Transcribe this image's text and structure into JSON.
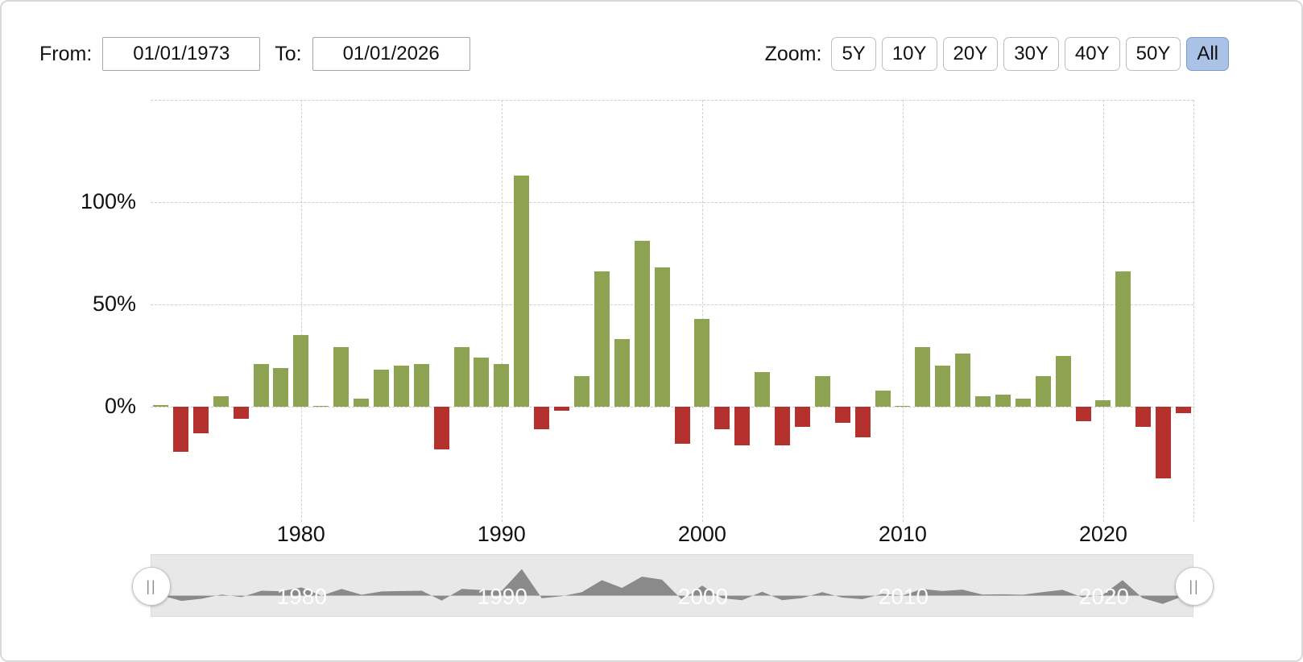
{
  "controls": {
    "from_label": "From:",
    "from_value": "01/01/1973",
    "to_label": "To:",
    "to_value": "01/01/2026",
    "zoom_label": "Zoom:",
    "zoom_buttons": [
      "5Y",
      "10Y",
      "20Y",
      "30Y",
      "40Y",
      "50Y",
      "All"
    ],
    "zoom_selected": "All"
  },
  "chart_data": {
    "type": "bar",
    "title": "",
    "xlabel": "",
    "ylabel": "",
    "x": [
      1973,
      1974,
      1975,
      1976,
      1977,
      1978,
      1979,
      1980,
      1981,
      1982,
      1983,
      1984,
      1985,
      1986,
      1987,
      1988,
      1989,
      1990,
      1991,
      1992,
      1993,
      1994,
      1995,
      1996,
      1997,
      1998,
      1999,
      2000,
      2001,
      2002,
      2003,
      2004,
      2005,
      2006,
      2007,
      2008,
      2009,
      2010,
      2011,
      2012,
      2013,
      2014,
      2015,
      2016,
      2017,
      2018,
      2019,
      2020,
      2021,
      2022,
      2023,
      2024
    ],
    "values": [
      1,
      -22,
      -13,
      5,
      -6,
      21,
      19,
      35,
      0.5,
      29,
      4,
      18,
      20,
      21,
      -21,
      29,
      24,
      21,
      113,
      -11,
      -2,
      15,
      66,
      33,
      81,
      68,
      -18,
      43,
      -11,
      -19,
      17,
      -19,
      -10,
      15,
      -8,
      -15,
      8,
      0.5,
      29,
      20,
      26,
      5,
      6,
      4,
      15,
      25,
      -7,
      3,
      66,
      -10,
      -35,
      -3
    ],
    "value_unit": "%",
    "ylim": [
      -40,
      150
    ],
    "y_gridlines": [
      150,
      100,
      50,
      0
    ],
    "y_ticks": [
      {
        "value": 100,
        "label": "100%"
      },
      {
        "value": 50,
        "label": "50%"
      },
      {
        "value": 0,
        "label": "0%"
      }
    ],
    "x_ticks": [
      {
        "year": 1980,
        "label": "1980"
      },
      {
        "year": 1990,
        "label": "1990"
      },
      {
        "year": 2000,
        "label": "2000"
      },
      {
        "year": 2010,
        "label": "2010"
      },
      {
        "year": 2020,
        "label": "2020"
      }
    ],
    "positive_color": "#8da351",
    "negative_color": "#b4312e",
    "grid": true,
    "legend": false
  },
  "navigator": {
    "labels": [
      "1980",
      "1990",
      "2000",
      "2010",
      "2020"
    ],
    "handle_glyph": "||",
    "area_color": "#8a8a8a",
    "background": "#e8e8e8"
  }
}
